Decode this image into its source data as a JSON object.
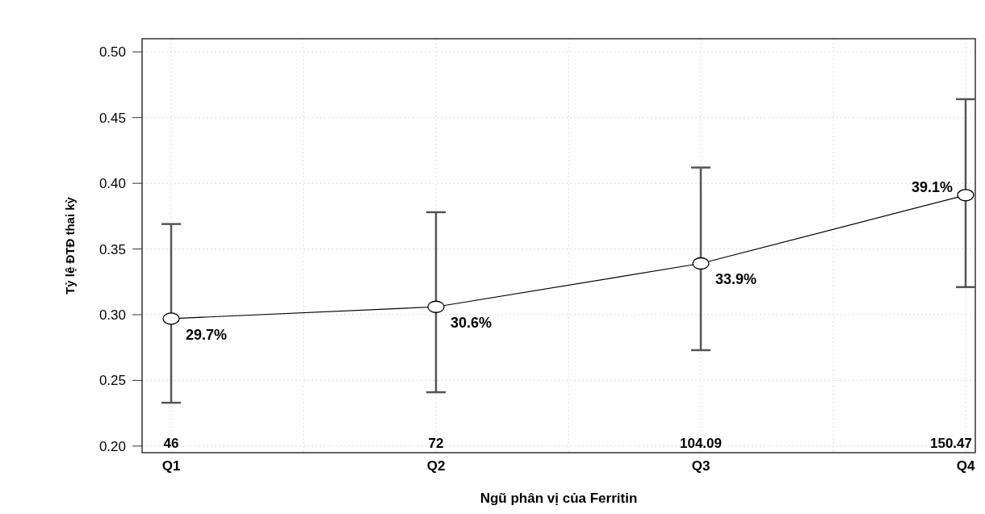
{
  "chart_data": {
    "type": "line",
    "xlabel": "Ngũ phân vị của Ferritin",
    "ylabel": "Tỷ lệ ĐTĐ thai kỳ",
    "categories": [
      "Q1",
      "Q2",
      "Q3",
      "Q4"
    ],
    "series": [
      {
        "color": "#000000",
        "values": [
          0.297,
          0.306,
          0.339,
          0.391
        ],
        "errors": [
          [
            0.233,
            0.369
          ],
          [
            0.241,
            0.378
          ],
          [
            0.273,
            0.412
          ],
          [
            0.321,
            0.464
          ]
        ],
        "value_labels": [
          "29.7%",
          "30.6%",
          "33.9%",
          "39.1%"
        ]
      }
    ],
    "ylim": [
      0.195,
      0.51
    ],
    "yticks": [
      {
        "value": 0.2,
        "label": "0.20"
      },
      {
        "value": 0.25,
        "label": "0.25"
      },
      {
        "value": 0.3,
        "label": "0.30"
      },
      {
        "value": 0.35,
        "label": "0.35"
      },
      {
        "value": 0.4,
        "label": "0.40"
      },
      {
        "value": 0.45,
        "label": "0.45"
      },
      {
        "value": 0.5,
        "label": "0.50"
      }
    ],
    "grid": true,
    "marker": "circle",
    "line_style": "solid",
    "annotations": [
      "46",
      "72",
      "104.09",
      "150.47"
    ]
  }
}
